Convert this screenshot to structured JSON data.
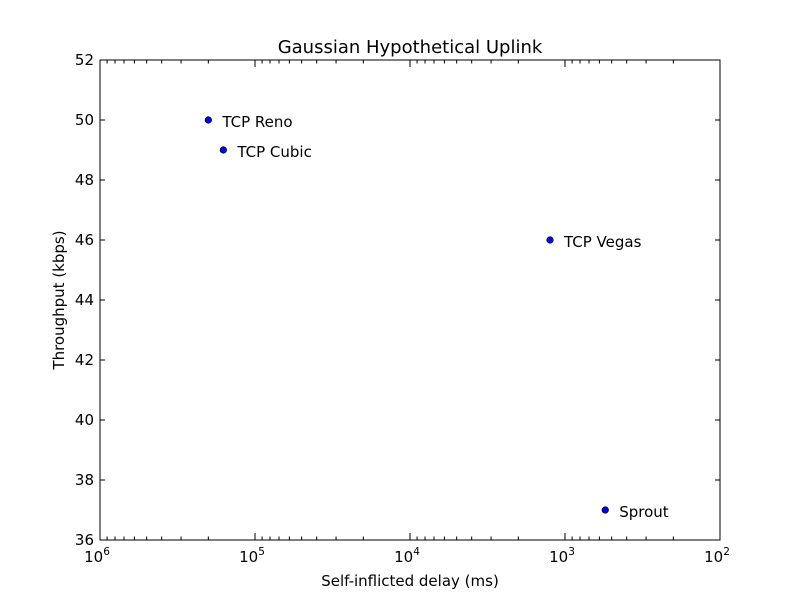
{
  "chart_data": {
    "type": "scatter",
    "title": "Gaussian Hypothetical Uplink",
    "xlabel": "Self-inflicted delay (ms)",
    "ylabel": "Throughput (kbps)",
    "x_scale": "log",
    "x_reversed": true,
    "xlim": [
      1000000,
      100
    ],
    "ylim": [
      36,
      52
    ],
    "y_ticks": [
      36,
      38,
      40,
      42,
      44,
      46,
      48,
      50,
      52
    ],
    "x_ticks": [
      {
        "value": 1000000,
        "base": "10",
        "exp": "6"
      },
      {
        "value": 100000,
        "base": "10",
        "exp": "5"
      },
      {
        "value": 10000,
        "base": "10",
        "exp": "4"
      },
      {
        "value": 1000,
        "base": "10",
        "exp": "3"
      },
      {
        "value": 100,
        "base": "10",
        "exp": "2"
      }
    ],
    "points": [
      {
        "label": "TCP Reno",
        "x": 200000,
        "y": 50
      },
      {
        "label": "TCP Cubic",
        "x": 160000,
        "y": 49
      },
      {
        "label": "TCP Vegas",
        "x": 1250,
        "y": 46
      },
      {
        "label": "Sprout",
        "x": 550,
        "y": 37
      }
    ],
    "marker_color": "#0000ff"
  }
}
